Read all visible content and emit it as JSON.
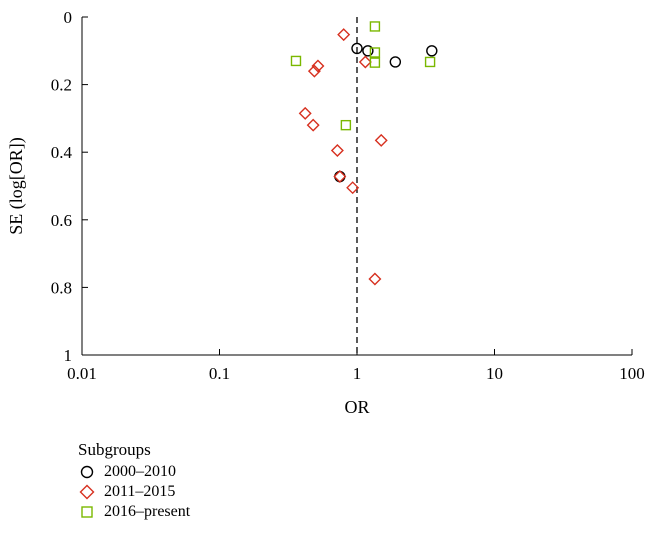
{
  "chart_data": {
    "type": "scatter",
    "title": "",
    "xlabel": "OR",
    "ylabel": "SE (log[OR])",
    "x_scale": "log",
    "xlim": [
      0.01,
      100
    ],
    "ylim": [
      0,
      1
    ],
    "y_inverted": true,
    "x_ticks": [
      "0.01",
      "0.1",
      "1",
      "10",
      "100"
    ],
    "y_ticks": [
      "0",
      "0.2",
      "0.4",
      "0.6",
      "0.8",
      "1"
    ],
    "reference_line_x": 1,
    "grid": false,
    "legend": {
      "placement": "bottom-left",
      "title": "Subgroups"
    },
    "series": [
      {
        "name": "2000–2010",
        "marker": "circle",
        "color": "#000000",
        "points": [
          {
            "x": 1.0,
            "y": 0.093
          },
          {
            "x": 1.2,
            "y": 0.1
          },
          {
            "x": 1.9,
            "y": 0.133
          },
          {
            "x": 3.5,
            "y": 0.1
          },
          {
            "x": 0.75,
            "y": 0.472
          }
        ]
      },
      {
        "name": "2011–2015",
        "marker": "diamond",
        "color": "#d7301f",
        "points": [
          {
            "x": 0.8,
            "y": 0.052
          },
          {
            "x": 1.15,
            "y": 0.133
          },
          {
            "x": 0.52,
            "y": 0.145
          },
          {
            "x": 0.49,
            "y": 0.16
          },
          {
            "x": 0.42,
            "y": 0.285
          },
          {
            "x": 0.48,
            "y": 0.32
          },
          {
            "x": 1.5,
            "y": 0.365
          },
          {
            "x": 0.72,
            "y": 0.395
          },
          {
            "x": 0.75,
            "y": 0.472
          },
          {
            "x": 0.93,
            "y": 0.505
          },
          {
            "x": 1.35,
            "y": 0.775
          }
        ]
      },
      {
        "name": "2016–present",
        "marker": "square",
        "color": "#7ab800",
        "points": [
          {
            "x": 1.35,
            "y": 0.028
          },
          {
            "x": 1.35,
            "y": 0.105
          },
          {
            "x": 0.36,
            "y": 0.13
          },
          {
            "x": 1.35,
            "y": 0.135
          },
          {
            "x": 3.4,
            "y": 0.133
          },
          {
            "x": 0.83,
            "y": 0.32
          }
        ]
      }
    ]
  }
}
